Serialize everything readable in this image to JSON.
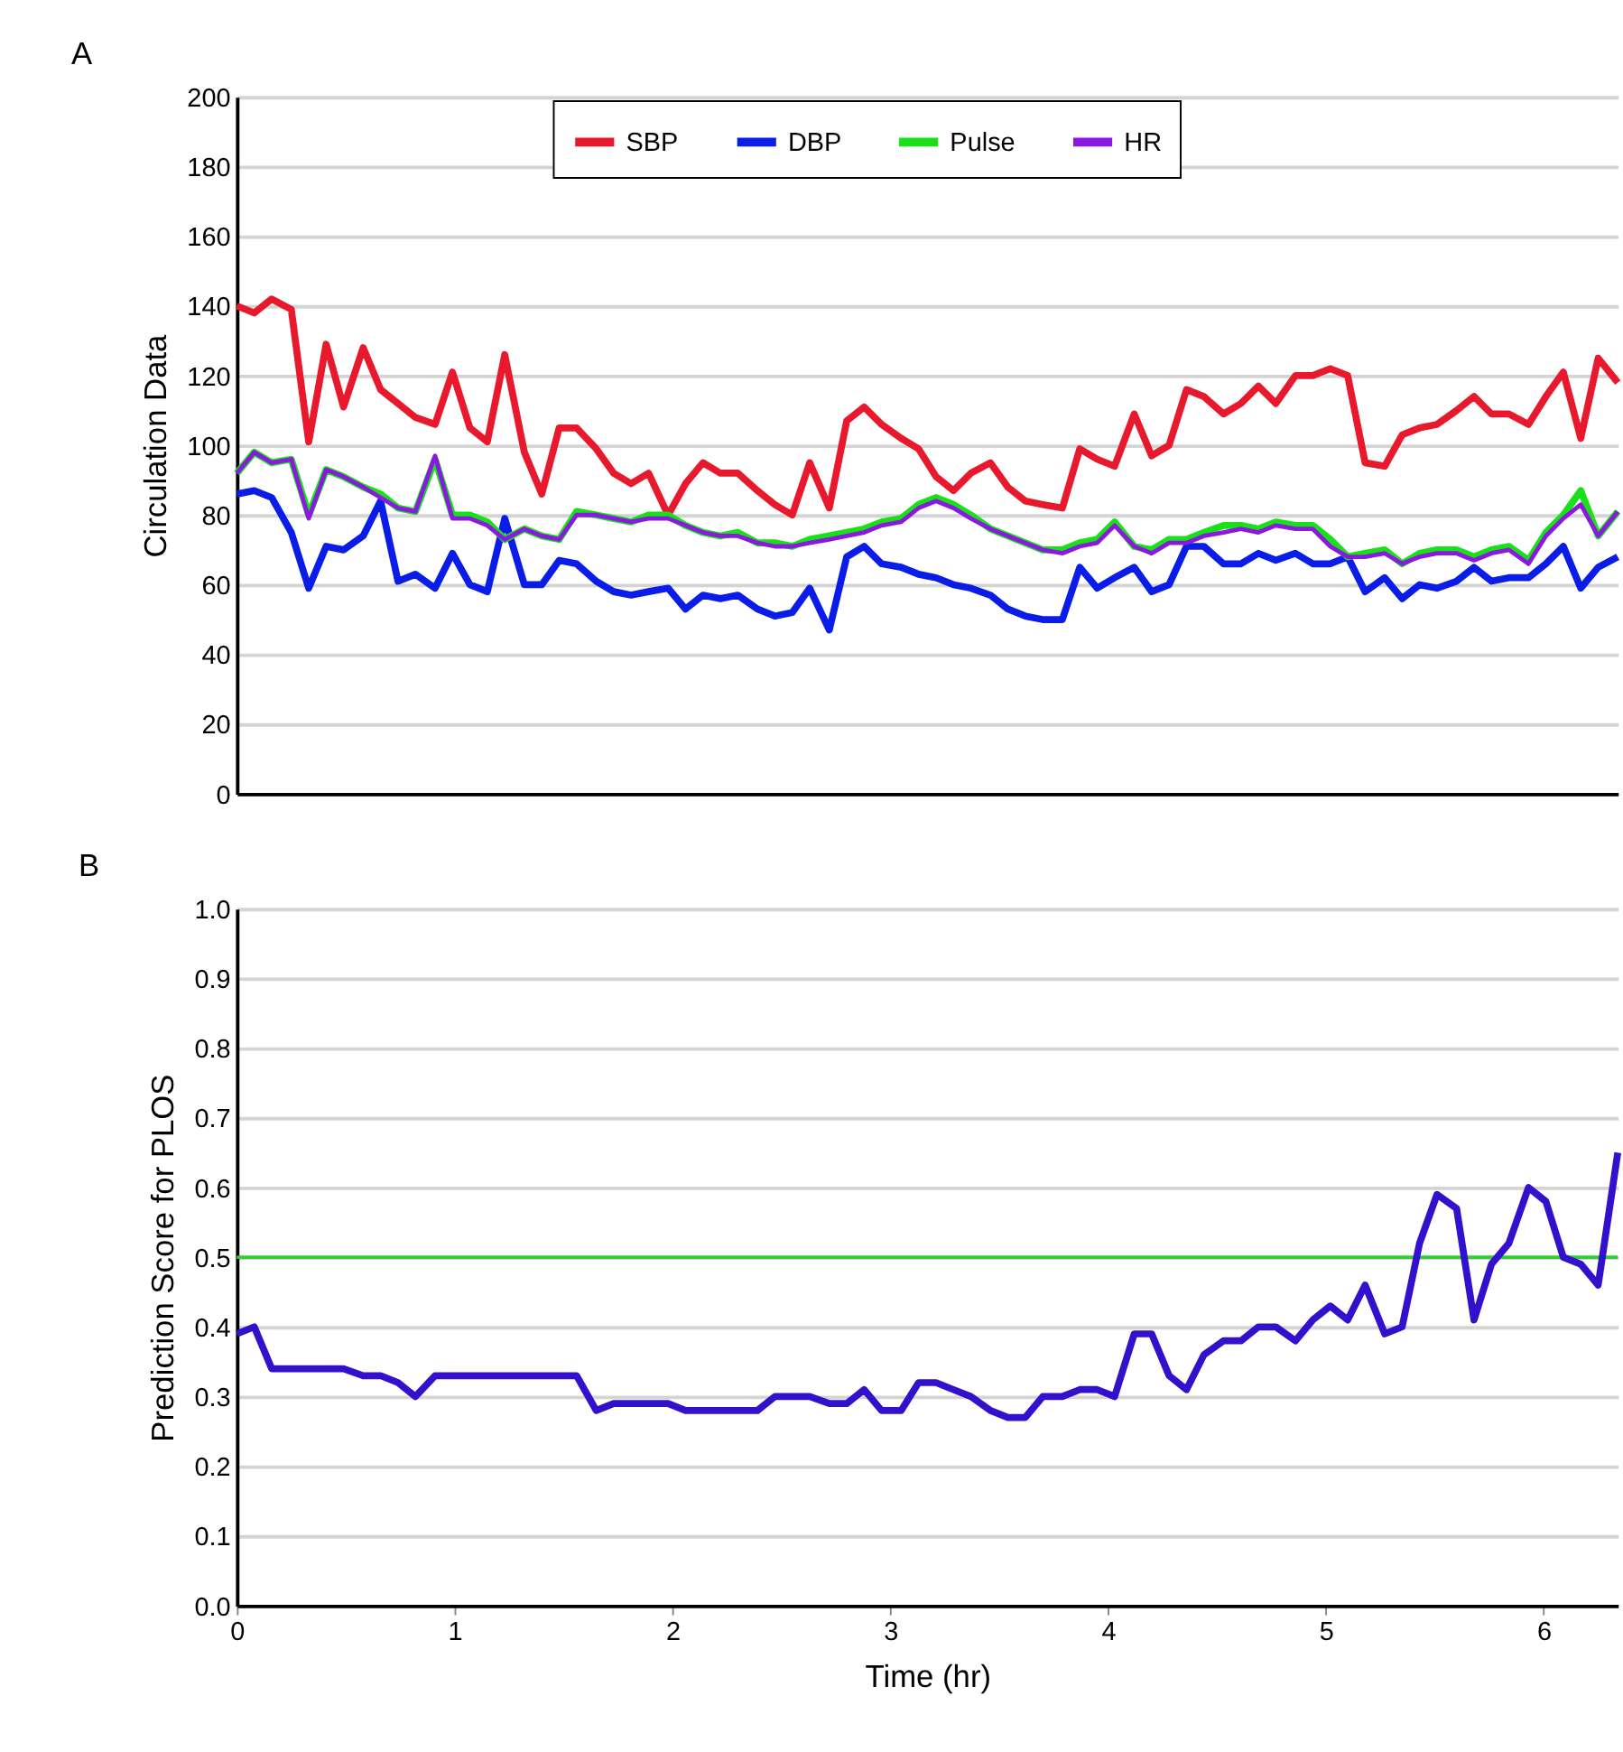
{
  "chart_data": [
    {
      "type": "line",
      "title": "A",
      "ylabel": "Circulation Data",
      "xlim": [
        0,
        6.34
      ],
      "ylim": [
        0,
        200
      ],
      "yticks": [
        0,
        20,
        40,
        60,
        80,
        100,
        120,
        140,
        160,
        180,
        200
      ],
      "grid": "y",
      "legend": "top",
      "tick_labels": "y",
      "marker": "none",
      "line_style": "solid",
      "x": [
        0,
        0.08,
        0.16,
        0.25,
        0.33,
        0.41,
        0.49,
        0.58,
        0.66,
        0.74,
        0.82,
        0.91,
        0.99,
        1.07,
        1.15,
        1.23,
        1.32,
        1.4,
        1.48,
        1.56,
        1.65,
        1.73,
        1.81,
        1.89,
        1.98,
        2.06,
        2.14,
        2.22,
        2.3,
        2.39,
        2.47,
        2.55,
        2.63,
        2.72,
        2.8,
        2.88,
        2.96,
        3.05,
        3.13,
        3.21,
        3.29,
        3.37,
        3.46,
        3.54,
        3.62,
        3.7,
        3.79,
        3.87,
        3.95,
        4.03,
        4.12,
        4.2,
        4.28,
        4.36,
        4.44,
        4.53,
        4.61,
        4.69,
        4.77,
        4.86,
        4.94,
        5.02,
        5.1,
        5.18,
        5.27,
        5.35,
        5.43,
        5.51,
        5.6,
        5.68,
        5.76,
        5.84,
        5.93,
        6.01,
        6.09,
        6.17,
        6.25,
        6.34
      ],
      "series": [
        {
          "name": "SBP",
          "color": "#e8192c",
          "values": [
            140,
            138,
            142,
            139,
            101,
            129,
            111,
            128,
            116,
            112,
            108,
            106,
            121,
            105,
            101,
            126,
            98,
            86,
            105,
            105,
            99,
            92,
            89,
            92,
            80,
            89,
            95,
            92,
            92,
            87,
            83,
            80,
            95,
            82,
            107,
            111,
            106,
            102,
            99,
            91,
            87,
            92,
            95,
            88,
            84,
            83,
            82,
            99,
            96,
            94,
            109,
            97,
            100,
            116,
            114,
            109,
            112,
            117,
            112,
            120,
            120,
            122,
            120,
            95,
            94,
            103,
            105,
            106,
            110,
            114,
            109,
            109,
            106,
            114,
            121,
            102,
            125,
            118
          ]
        },
        {
          "name": "DBP",
          "color": "#0a1de8",
          "values": [
            86,
            87,
            85,
            75,
            59,
            71,
            70,
            74,
            84,
            61,
            63,
            59,
            69,
            60,
            58,
            79,
            60,
            60,
            67,
            66,
            61,
            58,
            57,
            58,
            59,
            53,
            57,
            56,
            57,
            53,
            51,
            52,
            59,
            47,
            68,
            71,
            66,
            65,
            63,
            62,
            60,
            59,
            57,
            53,
            51,
            50,
            50,
            65,
            59,
            62,
            65,
            58,
            60,
            71,
            71,
            66,
            66,
            69,
            67,
            69,
            66,
            66,
            68,
            58,
            62,
            56,
            60,
            59,
            61,
            65,
            61,
            62,
            62,
            66,
            71,
            59,
            65,
            68
          ]
        },
        {
          "name": "Pulse",
          "color": "#19e019",
          "values": [
            92,
            98,
            95,
            96,
            80,
            93,
            91,
            88,
            86,
            82,
            81,
            96,
            80,
            80,
            78,
            73,
            76,
            74,
            73,
            81,
            80,
            79,
            78,
            80,
            80,
            77,
            75,
            74,
            75,
            72,
            72,
            71,
            73,
            74,
            75,
            76,
            78,
            79,
            83,
            85,
            83,
            80,
            76,
            74,
            72,
            70,
            70,
            72,
            73,
            78,
            71,
            70,
            73,
            73,
            75,
            77,
            77,
            76,
            78,
            77,
            77,
            73,
            68,
            69,
            70,
            66,
            69,
            70,
            70,
            68,
            70,
            71,
            67,
            75,
            80,
            87,
            74,
            81
          ]
        },
        {
          "name": "HR",
          "color": "#8b18e0",
          "values": [
            92,
            98,
            95,
            96,
            79,
            93,
            91,
            88,
            85,
            82,
            81,
            97,
            79,
            79,
            77,
            73,
            76,
            74,
            73,
            80,
            80,
            79,
            78,
            79,
            79,
            77,
            75,
            74,
            74,
            72,
            71,
            71,
            72,
            73,
            74,
            75,
            77,
            78,
            82,
            84,
            82,
            79,
            76,
            74,
            72,
            70,
            69,
            71,
            72,
            77,
            71,
            69,
            72,
            72,
            74,
            75,
            76,
            75,
            77,
            76,
            76,
            71,
            68,
            68,
            69,
            66,
            68,
            69,
            69,
            67,
            69,
            70,
            66,
            74,
            79,
            83,
            74,
            81
          ]
        }
      ]
    },
    {
      "type": "line",
      "title": "B",
      "xlabel": "Time (hr)",
      "ylabel": "Prediction Score for PLOS",
      "xlim": [
        0,
        6.34
      ],
      "xticks": [
        0,
        1,
        2,
        3,
        4,
        5,
        6
      ],
      "legend": false,
      "ylim": [
        0,
        1
      ],
      "yticks": [
        {
          "value": 0,
          "label": "0.0"
        },
        0.1,
        0.2,
        0.3,
        0.4,
        0.5,
        0.6,
        0.7,
        0.8,
        0.9,
        {
          "value": 1,
          "label": "1.0"
        }
      ],
      "grid": "y",
      "marker": "none",
      "line_style": "solid",
      "x": [
        0,
        0.08,
        0.16,
        0.25,
        0.33,
        0.41,
        0.49,
        0.58,
        0.66,
        0.74,
        0.82,
        0.91,
        0.99,
        1.07,
        1.15,
        1.23,
        1.32,
        1.4,
        1.48,
        1.56,
        1.65,
        1.73,
        1.81,
        1.89,
        1.98,
        2.06,
        2.14,
        2.22,
        2.3,
        2.39,
        2.47,
        2.55,
        2.63,
        2.72,
        2.8,
        2.88,
        2.96,
        3.05,
        3.13,
        3.21,
        3.29,
        3.37,
        3.46,
        3.54,
        3.62,
        3.7,
        3.79,
        3.87,
        3.95,
        4.03,
        4.12,
        4.2,
        4.28,
        4.36,
        4.44,
        4.53,
        4.61,
        4.69,
        4.77,
        4.86,
        4.94,
        5.02,
        5.1,
        5.18,
        5.27,
        5.35,
        5.43,
        5.51,
        5.6,
        5.68,
        5.76,
        5.84,
        5.93,
        6.01,
        6.09,
        6.17,
        6.25,
        6.34
      ],
      "series": [
        {
          "color": "#3311cc",
          "values": [
            0.39,
            0.4,
            0.34,
            0.34,
            0.34,
            0.34,
            0.34,
            0.33,
            0.33,
            0.32,
            0.3,
            0.33,
            0.33,
            0.33,
            0.33,
            0.33,
            0.33,
            0.33,
            0.33,
            0.33,
            0.28,
            0.29,
            0.29,
            0.29,
            0.29,
            0.28,
            0.28,
            0.28,
            0.28,
            0.28,
            0.3,
            0.3,
            0.3,
            0.29,
            0.29,
            0.31,
            0.28,
            0.28,
            0.32,
            0.32,
            0.31,
            0.3,
            0.28,
            0.27,
            0.27,
            0.3,
            0.3,
            0.31,
            0.31,
            0.3,
            0.39,
            0.39,
            0.33,
            0.31,
            0.36,
            0.38,
            0.38,
            0.4,
            0.4,
            0.38,
            0.41,
            0.43,
            0.41,
            0.46,
            0.39,
            0.4,
            0.52,
            0.59,
            0.57,
            0.41,
            0.49,
            0.52,
            0.6,
            0.58,
            0.5,
            0.49,
            0.46,
            0.65
          ]
        }
      ],
      "ref_lines": [
        {
          "axis": "y",
          "value": 0.5,
          "color": "#33cc33"
        }
      ]
    }
  ]
}
